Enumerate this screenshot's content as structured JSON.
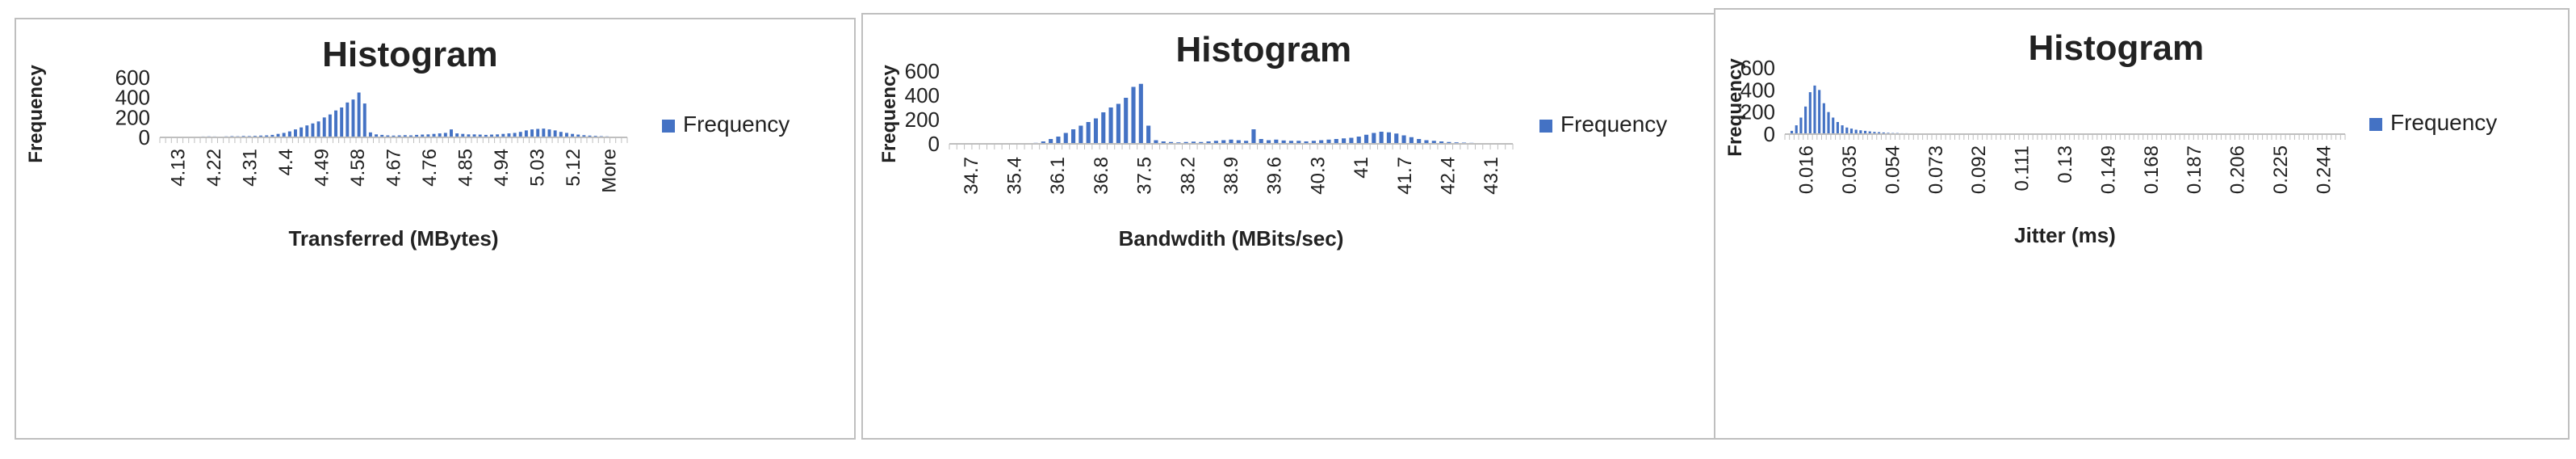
{
  "colors": {
    "bar": "#4472C4",
    "axis": "#bfbfbf",
    "text": "#222222",
    "border": "#bfbfbf"
  },
  "chart_data": [
    {
      "type": "bar",
      "title": "Histogram",
      "xlabel": "Transferred (MBytes)",
      "ylabel": "Frequency",
      "ylim": [
        0,
        600
      ],
      "yticks": [
        0,
        200,
        400,
        600
      ],
      "grid": false,
      "legend_position": "right",
      "legend": [
        "Frequency"
      ],
      "tick_labels": [
        "4.13",
        "4.22",
        "4.31",
        "4.4",
        "4.49",
        "4.58",
        "4.67",
        "4.76",
        "4.85",
        "4.94",
        "5.03",
        "5.12",
        "More"
      ],
      "series": [
        {
          "name": "Frequency",
          "values": [
            5,
            6,
            5,
            6,
            7,
            6,
            8,
            9,
            10,
            9,
            8,
            10,
            12,
            11,
            14,
            13,
            15,
            18,
            20,
            25,
            35,
            45,
            60,
            80,
            100,
            120,
            140,
            160,
            200,
            230,
            270,
            300,
            350,
            380,
            450,
            340,
            50,
            30,
            25,
            20,
            18,
            20,
            22,
            20,
            25,
            28,
            30,
            35,
            40,
            45,
            80,
            40,
            35,
            30,
            30,
            28,
            25,
            28,
            30,
            35,
            40,
            45,
            55,
            70,
            80,
            85,
            88,
            80,
            70,
            55,
            45,
            35,
            28,
            22,
            18,
            15,
            12,
            10,
            8,
            8,
            5
          ]
        }
      ]
    },
    {
      "type": "bar",
      "title": "Histogram",
      "xlabel": "Bandwdith (MBits/sec)",
      "ylabel": "Frequency",
      "ylim": [
        0,
        600
      ],
      "yticks": [
        0,
        200,
        400,
        600
      ],
      "grid": false,
      "legend_position": "right",
      "legend": [
        "Frequency"
      ],
      "tick_labels": [
        "34.7",
        "35.4",
        "36.1",
        "36.8",
        "37.5",
        "38.2",
        "38.9",
        "39.6",
        "40.3",
        "41",
        "41.7",
        "42.4",
        "43.1"
      ],
      "series": [
        {
          "name": "Frequency",
          "values": [
            1,
            1,
            1,
            1,
            1,
            1,
            2,
            2,
            3,
            4,
            5,
            8,
            20,
            40,
            60,
            90,
            120,
            150,
            180,
            210,
            260,
            300,
            330,
            380,
            470,
            495,
            150,
            30,
            20,
            15,
            12,
            15,
            18,
            15,
            20,
            25,
            30,
            35,
            30,
            25,
            120,
            40,
            30,
            35,
            28,
            25,
            25,
            20,
            25,
            30,
            35,
            40,
            45,
            50,
            60,
            75,
            90,
            100,
            95,
            85,
            70,
            55,
            40,
            30,
            25,
            20,
            15,
            12,
            10,
            8,
            5,
            3,
            2,
            1,
            1
          ]
        }
      ]
    },
    {
      "type": "bar",
      "title": "Histogram",
      "xlabel": "Jitter (ms)",
      "ylabel": "Frequency",
      "ylim": [
        0,
        600
      ],
      "yticks": [
        0,
        200,
        400,
        600
      ],
      "grid": false,
      "legend_position": "right",
      "legend": [
        "Frequency"
      ],
      "tick_labels": [
        "0.016",
        "0.035",
        "0.054",
        "0.073",
        "0.092",
        "0.111",
        "0.13",
        "0.149",
        "0.168",
        "0.187",
        "0.206",
        "0.225",
        "0.244"
      ],
      "series": [
        {
          "name": "Frequency",
          "values": [
            5,
            30,
            80,
            150,
            250,
            380,
            440,
            400,
            280,
            200,
            150,
            110,
            80,
            60,
            50,
            40,
            35,
            30,
            25,
            20,
            18,
            15,
            12,
            10,
            10,
            8,
            8,
            7,
            7,
            6,
            6,
            6,
            5,
            5,
            5,
            5,
            5,
            4,
            4,
            4,
            4,
            4,
            4,
            4,
            3,
            3,
            3,
            3,
            3,
            3,
            3,
            3,
            3,
            3,
            3,
            3,
            3,
            3,
            3,
            3,
            3,
            3,
            3,
            3,
            3,
            3,
            3,
            3,
            3,
            3,
            3,
            3,
            3,
            3,
            3,
            3,
            3,
            3,
            3,
            3,
            3,
            3,
            3,
            3,
            3,
            3,
            3,
            3,
            3,
            3,
            3,
            3,
            3,
            3,
            3,
            3,
            3,
            3,
            3,
            3,
            3,
            3,
            3,
            3,
            3,
            3,
            3,
            3,
            3,
            3,
            3,
            3,
            3,
            3,
            3,
            3,
            3,
            3,
            3,
            3,
            3,
            3
          ]
        }
      ]
    }
  ]
}
